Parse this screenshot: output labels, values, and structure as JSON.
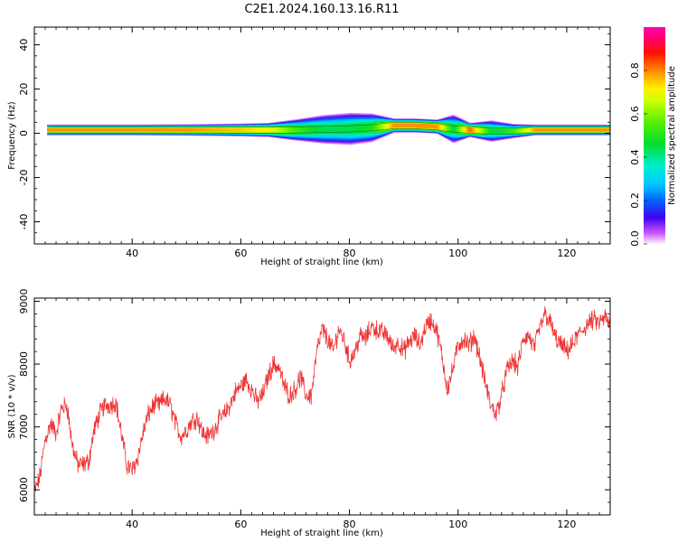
{
  "title": "C2E1.2024.160.13.16.R11",
  "chart_data": [
    {
      "type": "heatmap",
      "xlabel": "Height of straight line (km)",
      "ylabel": "Frequency (Hz)",
      "xlim": [
        22,
        128
      ],
      "ylim": [
        -50,
        48
      ],
      "xticks": [
        40,
        60,
        80,
        100,
        120
      ],
      "yticks": [
        -40,
        -20,
        0,
        20,
        40
      ],
      "colorbar": {
        "label": "Normalized spectral amplitude",
        "range": [
          0,
          1
        ],
        "ticks": [
          "0.0",
          "0.2",
          "0.4",
          "0.6",
          "0.8"
        ],
        "colormap": "gist_ncar-like (white, purple, blue, cyan, green, yellow, orange, red, magenta)"
      },
      "band": {
        "description": "narrow band of spectral energy centered near 0-2 Hz across full height range, broadening between ~70 and ~102 km",
        "profile": [
          {
            "x": 24,
            "center": 1.5,
            "halfwidth": 1.5,
            "peak": 0.9
          },
          {
            "x": 30,
            "center": 1.5,
            "halfwidth": 1.5,
            "peak": 0.9
          },
          {
            "x": 40,
            "center": 1.5,
            "halfwidth": 1.5,
            "peak": 0.9
          },
          {
            "x": 50,
            "center": 1.5,
            "halfwidth": 1.6,
            "peak": 0.9
          },
          {
            "x": 60,
            "center": 1.5,
            "halfwidth": 1.8,
            "peak": 0.85
          },
          {
            "x": 65,
            "center": 1.5,
            "halfwidth": 2.0,
            "peak": 0.8
          },
          {
            "x": 70,
            "center": 1.5,
            "halfwidth": 3.0,
            "peak": 0.6
          },
          {
            "x": 75,
            "center": 1.8,
            "halfwidth": 4.0,
            "peak": 0.5
          },
          {
            "x": 80,
            "center": 2.0,
            "halfwidth": 4.5,
            "peak": 0.5
          },
          {
            "x": 84,
            "center": 2.5,
            "halfwidth": 4.0,
            "peak": 0.55
          },
          {
            "x": 88,
            "center": 3.5,
            "halfwidth": 2.0,
            "peak": 0.9
          },
          {
            "x": 92,
            "center": 3.5,
            "halfwidth": 2.0,
            "peak": 0.9
          },
          {
            "x": 96,
            "center": 3.0,
            "halfwidth": 2.0,
            "peak": 0.9
          },
          {
            "x": 99,
            "center": 2.0,
            "halfwidth": 4.0,
            "peak": 0.5
          },
          {
            "x": 102,
            "center": 1.5,
            "halfwidth": 2.0,
            "peak": 0.95
          },
          {
            "x": 106,
            "center": 1.0,
            "halfwidth": 3.0,
            "peak": 0.5
          },
          {
            "x": 110,
            "center": 1.0,
            "halfwidth": 2.0,
            "peak": 0.6
          },
          {
            "x": 114,
            "center": 1.5,
            "halfwidth": 1.5,
            "peak": 0.9
          },
          {
            "x": 120,
            "center": 1.5,
            "halfwidth": 1.5,
            "peak": 0.9
          },
          {
            "x": 128,
            "center": 1.5,
            "halfwidth": 1.5,
            "peak": 0.9
          }
        ]
      }
    },
    {
      "type": "line",
      "xlabel": "Height of straight line (km)",
      "ylabel": "SNR (10 * v/v)",
      "xlim": [
        22,
        128
      ],
      "ylim": [
        5600,
        9050
      ],
      "xticks": [
        40,
        60,
        80,
        100,
        120
      ],
      "yticks": [
        6000,
        7000,
        8000,
        9000
      ],
      "grid": false,
      "series": [
        {
          "color": "#ee3333",
          "x": [
            22,
            23,
            24,
            25,
            26,
            27,
            28,
            29,
            30,
            31,
            32,
            33,
            34,
            35,
            36,
            37,
            38,
            39,
            40,
            41,
            42,
            43,
            44,
            45,
            46,
            47,
            48,
            49,
            50,
            51,
            52,
            53,
            54,
            55,
            56,
            57,
            58,
            59,
            60,
            61,
            62,
            63,
            64,
            65,
            66,
            67,
            68,
            69,
            70,
            71,
            72,
            73,
            74,
            75,
            76,
            77,
            78,
            79,
            80,
            81,
            82,
            83,
            84,
            85,
            86,
            87,
            88,
            89,
            90,
            91,
            92,
            93,
            94,
            95,
            96,
            97,
            98,
            99,
            100,
            101,
            102,
            103,
            104,
            105,
            106,
            107,
            108,
            109,
            110,
            111,
            112,
            113,
            114,
            115,
            116,
            117,
            118,
            119,
            120,
            121,
            122,
            123,
            124,
            125,
            126,
            127,
            128
          ],
          "y": [
            5950,
            6200,
            6800,
            7050,
            6900,
            7300,
            7350,
            6700,
            6400,
            6400,
            6450,
            6950,
            7200,
            7350,
            7350,
            7400,
            6900,
            6400,
            6300,
            6500,
            6900,
            7200,
            7350,
            7350,
            7450,
            7350,
            7050,
            6850,
            6950,
            7100,
            7150,
            6900,
            6850,
            6950,
            7100,
            7200,
            7350,
            7550,
            7650,
            7750,
            7600,
            7400,
            7500,
            7800,
            8000,
            7950,
            7650,
            7500,
            7600,
            7800,
            7500,
            7500,
            8200,
            8550,
            8400,
            8200,
            8550,
            8400,
            8050,
            8200,
            8450,
            8400,
            8600,
            8550,
            8500,
            8450,
            8250,
            8350,
            8200,
            8350,
            8450,
            8300,
            8600,
            8700,
            8550,
            8150,
            7600,
            7900,
            8300,
            8400,
            8300,
            8450,
            8100,
            7700,
            7350,
            7200,
            7500,
            7900,
            8050,
            7950,
            8400,
            8450,
            8250,
            8550,
            8800,
            8650,
            8400,
            8300,
            8200,
            8300,
            8450,
            8550,
            8650,
            8700,
            8650,
            8750,
            8600
          ]
        }
      ]
    }
  ]
}
